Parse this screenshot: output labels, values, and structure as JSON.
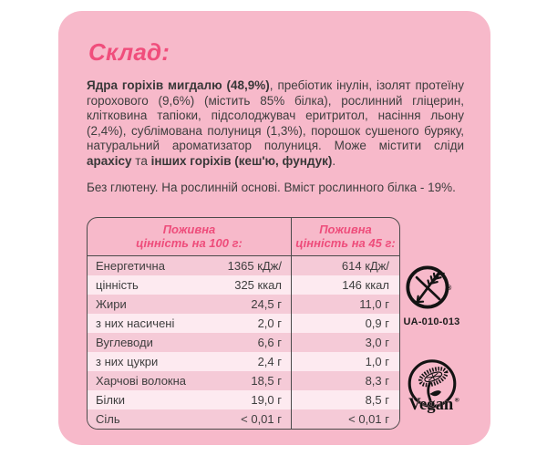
{
  "card": {
    "title": "Склад:",
    "ingredients": {
      "bold_lead": "Ядра горіхів мигдалю (48,9%)",
      "text_1": ", пребіотик інулін, ізолят протеїну горохового (9,6%) (містить 85% білка), рослинний гліцерин, клітковина тапіоки, підсолоджувач еритритол, насіння льону (2,4%), сублімована полуниця (1,3%), порошок сушеного буряку, натуральний ароматизатор полуниця. Може містити сліди ",
      "bold_allergen_1": "арахісу",
      "text_2": " та ",
      "bold_allergen_2": "інших горіхів (кеш'ю, фундук)",
      "text_3": "."
    },
    "claims_line": "Без глютену. На рослинній основі. Вміст рослинного білка - 19%.",
    "nutrition_table": {
      "col1_header_line1": "Поживна",
      "col1_header_line2": "цінність на 100 г:",
      "col2_header_line1": "Поживна",
      "col2_header_line2": "цінність на 45 г:",
      "rows": [
        {
          "label": "Енергетична",
          "per100": "1365 кДж/",
          "per45": "614 кДж/"
        },
        {
          "label": "цінність",
          "per100": "325 ккал",
          "per45": "146 ккал"
        },
        {
          "label": "Жири",
          "per100": "24,5 г",
          "per45": "11,0 г"
        },
        {
          "label": "з них насичені",
          "per100": "2,0 г",
          "per45": "0,9 г"
        },
        {
          "label": "Вуглеводи",
          "per100": "6,6 г",
          "per45": "3,0 г"
        },
        {
          "label": "з них цукри",
          "per100": "2,4 г",
          "per45": "1,0 г"
        },
        {
          "label": "Харчові волокна",
          "per100": "18,5 г",
          "per45": "8,3 г"
        },
        {
          "label": "Білки",
          "per100": "19,0 г",
          "per45": "8,5 г"
        },
        {
          "label": "Сіль",
          "per100": "< 0,01 г",
          "per45": "< 0,01 г"
        }
      ]
    },
    "certifications": {
      "gluten_free_code": "UA-010-013",
      "vegan_label": "Vegan",
      "registered_mark": "®"
    },
    "colors": {
      "card_bg": "#f7b9ca",
      "accent_pink": "#f04e7c",
      "row_odd_bg": "#f5cad7",
      "row_even_bg": "#fdeaf0",
      "text_dark": "#3e3e3e",
      "table_border": "#4a4a4a",
      "icon_black": "#131313"
    }
  }
}
